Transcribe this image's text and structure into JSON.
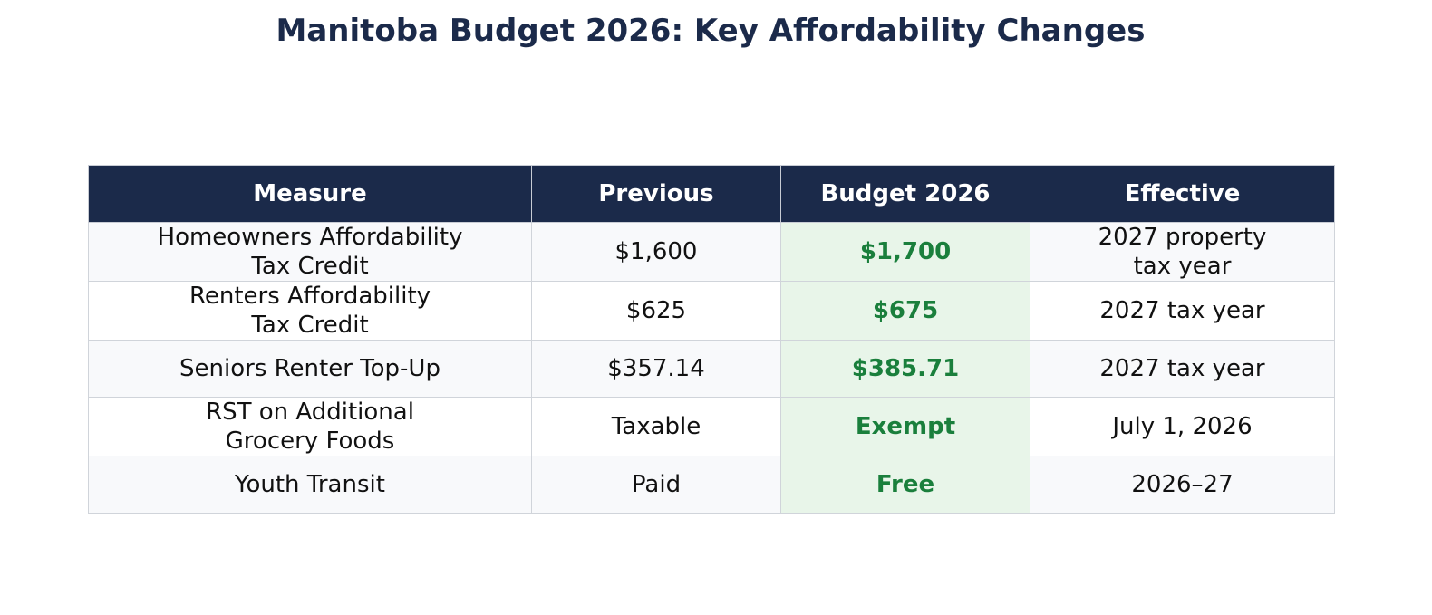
{
  "chart_data": {
    "type": "table",
    "title": "Manitoba Budget 2026: Key Affordability Changes",
    "columns": [
      "Measure",
      "Previous",
      "Budget 2026",
      "Effective"
    ],
    "rows": [
      [
        "Homeowners Affordability Tax Credit",
        "$1,600",
        "$1,700",
        "2027 property tax year"
      ],
      [
        "Renters Affordability Tax Credit",
        "$625",
        "$675",
        "2027 tax year"
      ],
      [
        "Seniors Renter Top-Up",
        "$357.14",
        "$385.71",
        "2027 tax year"
      ],
      [
        "RST on Additional Grocery Foods",
        "Taxable",
        "Exempt",
        "July 1, 2026"
      ],
      [
        "Youth Transit",
        "Paid",
        "Free",
        "2026–27"
      ]
    ],
    "colors": {
      "header_bg": "#1b2a4a",
      "highlight_bg": "#e8f5e9",
      "highlight_text": "#1a7f3c"
    }
  }
}
